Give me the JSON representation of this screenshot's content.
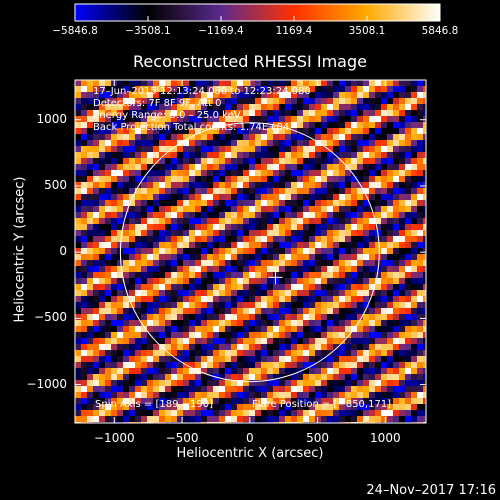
{
  "chart_data": {
    "type": "heatmap",
    "title": "Reconstructed RHESSI Image",
    "xlabel": "Heliocentric X (arcsec)",
    "ylabel": "Heliocentric Y (arcsec)",
    "xlim": [
      -1290,
      1300
    ],
    "ylim": [
      -1290,
      1300
    ],
    "x_ticks": [
      -1000,
      -500,
      0,
      500,
      1000
    ],
    "y_ticks": [
      -1000,
      -500,
      0,
      500,
      1000
    ],
    "x_tick_labels": [
      "−1000",
      "−500",
      "0",
      "500",
      "1000"
    ],
    "y_tick_labels": [
      "−1000",
      "−500",
      "0",
      "500",
      "1000"
    ],
    "colorbar": {
      "min": -5846.8,
      "max": 5846.8,
      "tick_values": [
        -5846.8,
        -3508.1,
        -1169.4,
        1169.4,
        3508.1,
        5846.8
      ],
      "tick_labels": [
        "−5846.8",
        "−3508.1",
        "−1169.4",
        "1169.4",
        "3508.1",
        "5846.8"
      ],
      "colormap": [
        "#0000ff",
        "#000000",
        "#5a2a8c",
        "#ff3000",
        "#ffaa00",
        "#ffffff"
      ]
    },
    "annotations": {
      "time_range": "17–Jun–2015 12:13:24.080 to 12:23:24.080",
      "detectors": "Detectors: 7F 8F 9F, Att 0",
      "energy": "Energy Range: 6.0 – 25.0 keV",
      "method": "Back Projection   Total counts: 1.74E+04",
      "spin_axis": "Spin Axis = [189,−190]",
      "flare_position": "Flare Position = [−850,171]"
    },
    "solar_disk": {
      "center": [
        0,
        0
      ],
      "radius_arcsec": 955
    },
    "spin_axis_marker": [
      189,
      -190
    ],
    "grid": false,
    "pattern_description_stripes": "diagonal fringes",
    "circle_color": "#ffffff"
  },
  "footer": {
    "timestamp": "24–Nov–2017 17:16"
  }
}
